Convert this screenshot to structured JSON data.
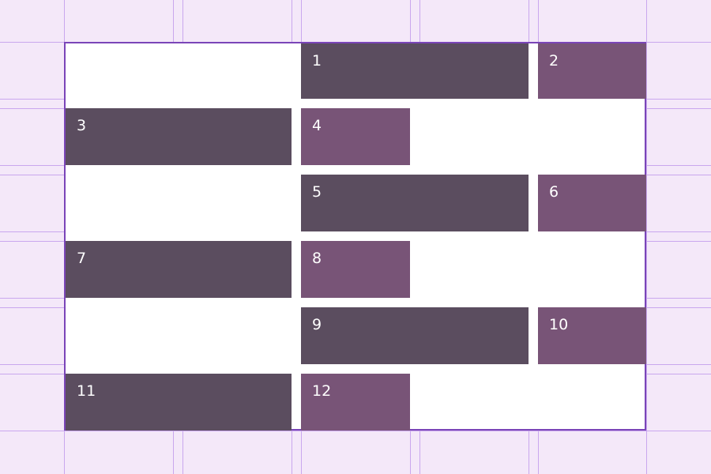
{
  "colors": {
    "page_background": "#f4e8f9",
    "grid_background": "#ffffff",
    "grid_border": "#7a45b8",
    "guide_line": "#c9a7ee",
    "dark_item": "#5b4d5f",
    "purple_item": "#785477",
    "item_text": "#ffffff"
  },
  "grid": {
    "items": [
      {
        "label": "1",
        "color": "dark"
      },
      {
        "label": "2",
        "color": "purple"
      },
      {
        "label": "3",
        "color": "dark"
      },
      {
        "label": "4",
        "color": "purple"
      },
      {
        "label": "5",
        "color": "dark"
      },
      {
        "label": "6",
        "color": "purple"
      },
      {
        "label": "7",
        "color": "dark"
      },
      {
        "label": "8",
        "color": "purple"
      },
      {
        "label": "9",
        "color": "dark"
      },
      {
        "label": "10",
        "color": "purple"
      },
      {
        "label": "11",
        "color": "dark"
      },
      {
        "label": "12",
        "color": "purple"
      }
    ]
  }
}
